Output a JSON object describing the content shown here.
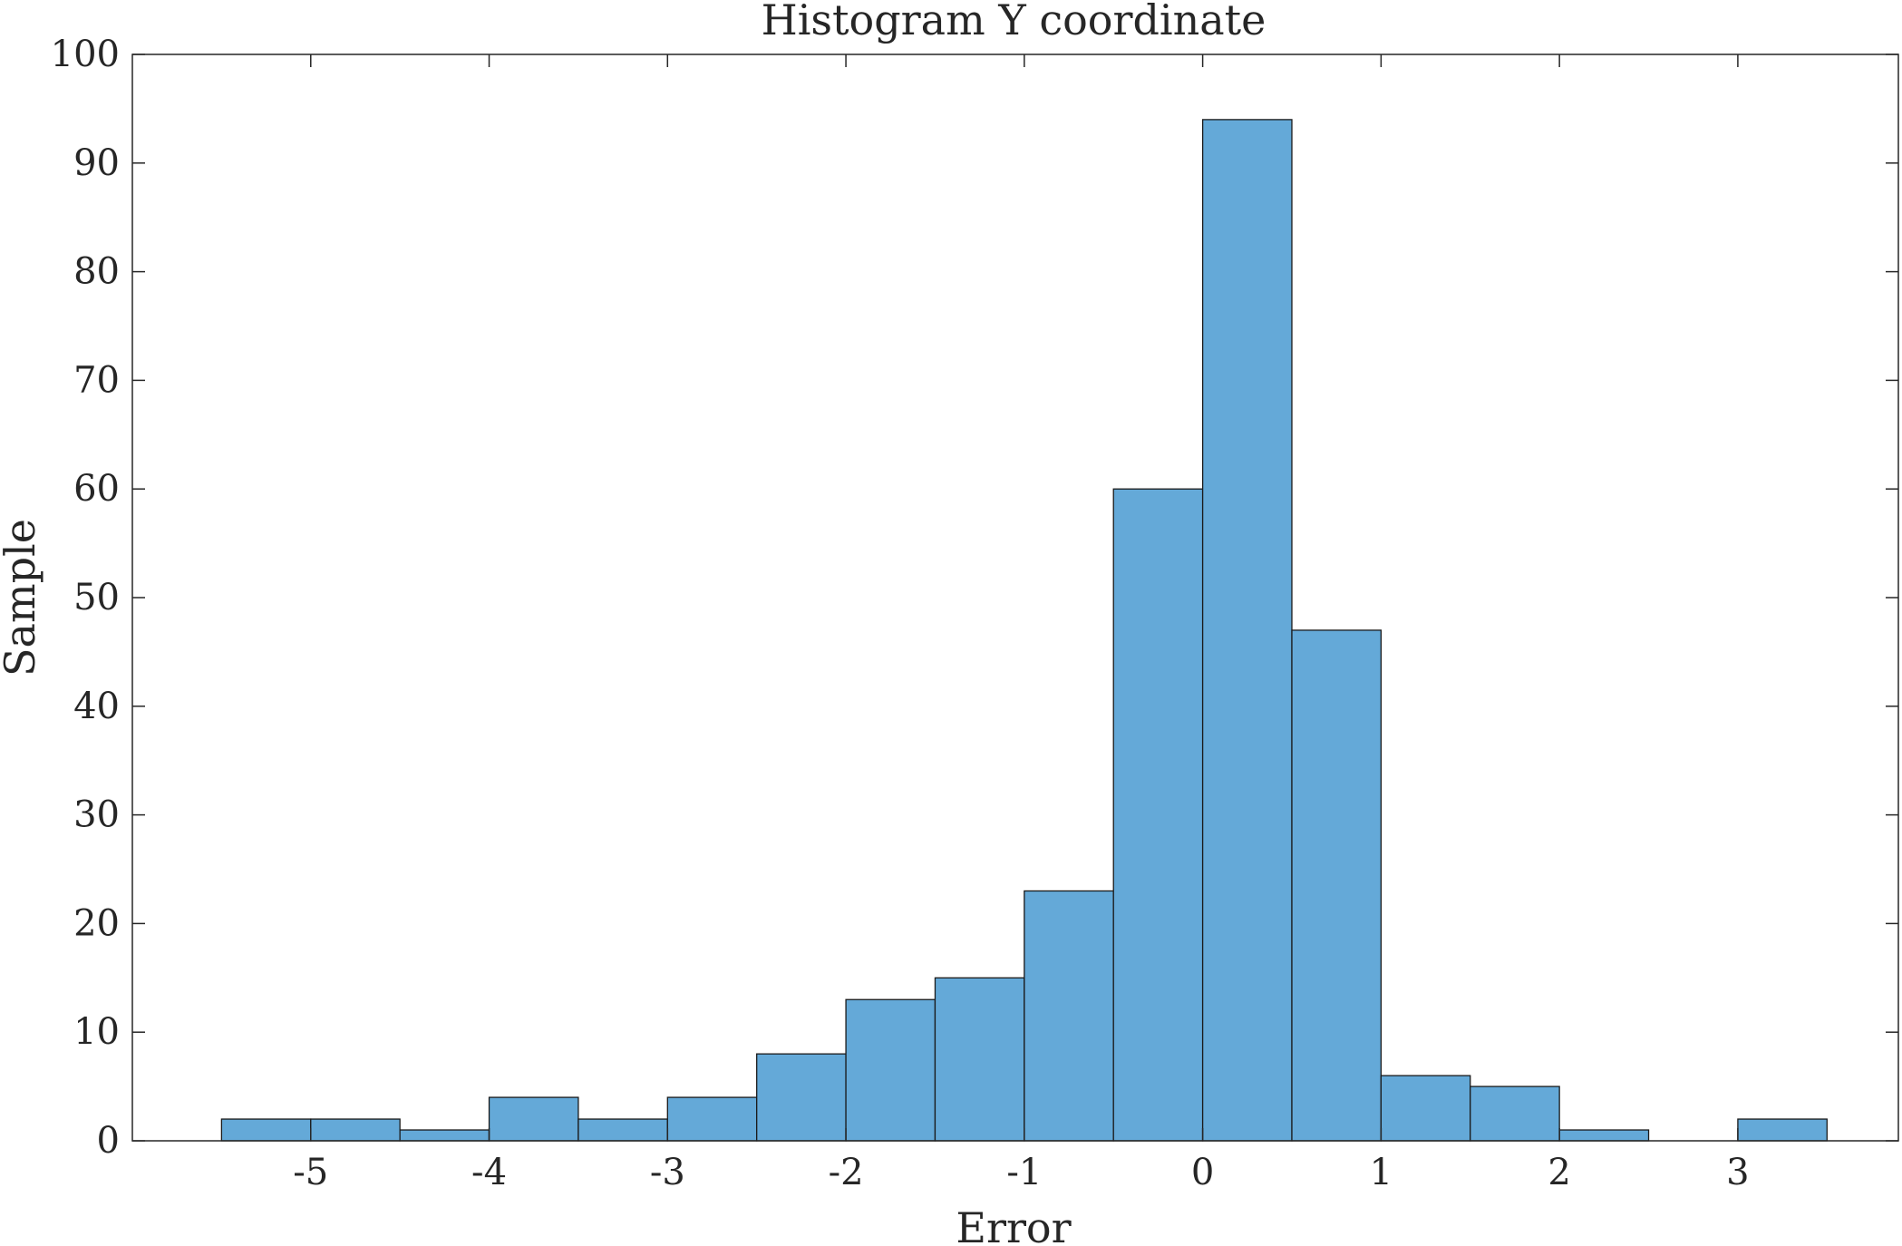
{
  "chart_data": {
    "type": "bar",
    "title": "Histogram Y coordinate",
    "xlabel": "Error",
    "ylabel": "Sample",
    "xlim": [
      -6,
      3.9
    ],
    "ylim": [
      0,
      100
    ],
    "xticks": [
      -5,
      -4,
      -3,
      -2,
      -1,
      0,
      1,
      2,
      3
    ],
    "xtick_labels": [
      "-5",
      "-4",
      "-3",
      "-2",
      "-1",
      "0",
      "1",
      "2",
      "3"
    ],
    "yticks": [
      0,
      10,
      20,
      30,
      40,
      50,
      60,
      70,
      80,
      90,
      100
    ],
    "ytick_labels": [
      "0",
      "10",
      "20",
      "30",
      "40",
      "50",
      "60",
      "70",
      "80",
      "90",
      "100"
    ],
    "bin_width": 0.5,
    "bin_edges": [
      -5.5,
      -5.0,
      -4.5,
      -4.0,
      -3.5,
      -3.0,
      -2.5,
      -2.0,
      -1.5,
      -1.0,
      -0.5,
      0.0,
      0.5,
      1.0,
      1.5,
      2.0,
      2.5,
      3.0,
      3.5
    ],
    "values": [
      2,
      2,
      1,
      4,
      2,
      4,
      8,
      13,
      15,
      23,
      60,
      94,
      47,
      6,
      5,
      1,
      0,
      2
    ],
    "grid": false,
    "colors": {
      "bar_fill": "#64a9d8",
      "bar_edge": "#1a1a1a",
      "axis": "#262626"
    }
  }
}
